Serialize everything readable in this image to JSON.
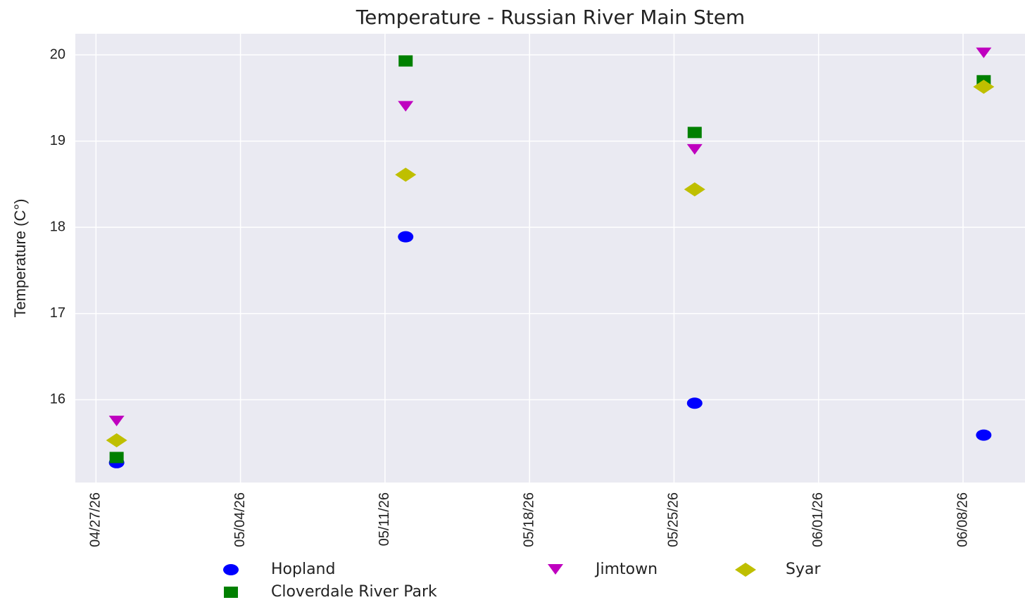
{
  "chart_data": {
    "type": "scatter",
    "title": "Temperature - Russian River Main Stem",
    "ylabel": "Temperature (C°)",
    "x": [
      "2026-04-28",
      "2026-05-12",
      "2026-05-26",
      "2026-06-09"
    ],
    "series": [
      {
        "name": "Hopland",
        "color": "#0000ff",
        "marker": "circle",
        "values": [
          15.27,
          17.89,
          15.96,
          15.59
        ]
      },
      {
        "name": "Cloverdale River Park",
        "color": "#008000",
        "marker": "square",
        "values": [
          15.33,
          19.93,
          19.1,
          19.7
        ]
      },
      {
        "name": "Jimtown",
        "color": "#bf00bf",
        "marker": "triangle-down",
        "values": [
          15.75,
          19.4,
          18.9,
          20.02
        ]
      },
      {
        "name": "Syar",
        "color": "#bfbf00",
        "marker": "diamond",
        "values": [
          15.53,
          18.61,
          18.44,
          19.63
        ]
      }
    ],
    "xlim": [
      "2026-04-26",
      "2026-06-11"
    ],
    "xticks": [
      {
        "value": "2026-04-27",
        "label": "04/27/26"
      },
      {
        "value": "2026-05-04",
        "label": "05/04/26"
      },
      {
        "value": "2026-05-11",
        "label": "05/11/26"
      },
      {
        "value": "2026-05-18",
        "label": "05/18/26"
      },
      {
        "value": "2026-05-25",
        "label": "05/25/26"
      },
      {
        "value": "2026-06-01",
        "label": "06/01/26"
      },
      {
        "value": "2026-06-08",
        "label": "06/08/26"
      }
    ],
    "ylim": [
      15.04,
      20.245
    ],
    "yticks": [
      16,
      17,
      18,
      19,
      20
    ],
    "grid": true
  }
}
